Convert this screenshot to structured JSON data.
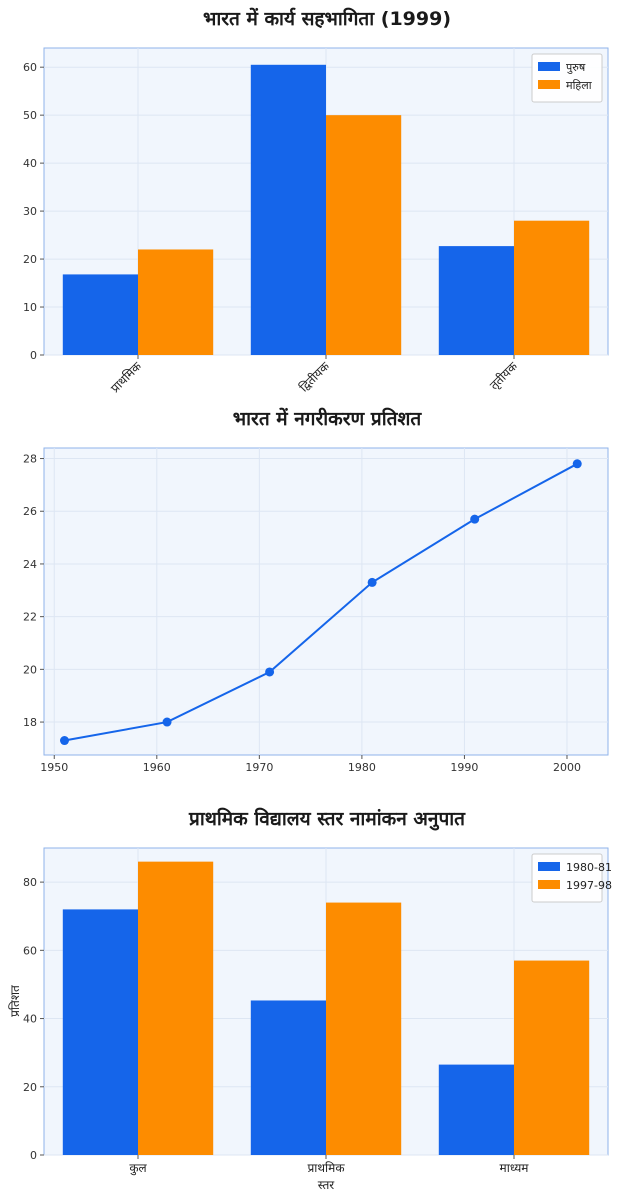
{
  "colors": {
    "blue": "#1565ea",
    "orange": "#fd8c00"
  },
  "chart_data": [
    {
      "type": "bar",
      "title": "भारत में कार्य सहभागिता (1999)",
      "categories": [
        "प्राथमिक",
        "द्वितीयक",
        "तृतीयक"
      ],
      "series": [
        {
          "name": "पुरुष",
          "values": [
            16.8,
            60.5,
            22.7
          ]
        },
        {
          "name": "महिला",
          "values": [
            22,
            50,
            28
          ]
        }
      ],
      "ylim": [
        0,
        64
      ],
      "yticks": [
        0,
        10,
        20,
        30,
        40,
        50,
        60
      ],
      "xlabel": "",
      "ylabel": "",
      "legend": "top-right",
      "grid": true,
      "rotate_labels": true
    },
    {
      "type": "line",
      "title": "भारत में नगरीकरण प्रतिशत",
      "x": [
        1951,
        1961,
        1971,
        1981,
        1991,
        2001
      ],
      "series": [
        {
          "values": [
            17.3,
            18.0,
            19.9,
            23.3,
            25.7,
            27.8
          ]
        }
      ],
      "xlim": [
        1949,
        2004
      ],
      "ylim": [
        16.75,
        28.4
      ],
      "xticks": [
        1950,
        1960,
        1970,
        1980,
        1990,
        2000
      ],
      "yticks": [
        18,
        20,
        22,
        24,
        26,
        28
      ],
      "xlabel": "",
      "ylabel": "",
      "grid": true
    },
    {
      "type": "bar",
      "title": "प्राथमिक विद्यालय स्तर नामांकन अनुपात",
      "categories": [
        "कुल",
        "प्राथमिक",
        "माध्यम"
      ],
      "series": [
        {
          "name": "1980-81",
          "values": [
            72,
            45.3,
            26.5
          ]
        },
        {
          "name": "1997-98",
          "values": [
            86,
            74,
            57
          ]
        }
      ],
      "ylim": [
        0,
        90
      ],
      "yticks": [
        0,
        20,
        40,
        60,
        80
      ],
      "xlabel": "स्तर",
      "ylabel": "प्रतिशत",
      "legend": "top-right",
      "grid": true,
      "rotate_labels": false
    }
  ]
}
